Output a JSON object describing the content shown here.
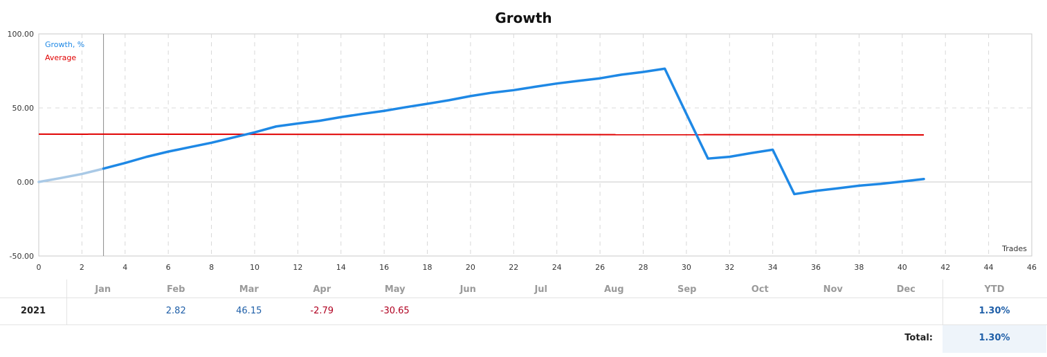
{
  "chart_data": {
    "type": "line",
    "title": "Growth",
    "xlabel": "Trades",
    "ylabel": "",
    "xlim": [
      0,
      46
    ],
    "ylim": [
      -50,
      100
    ],
    "x_ticks": [
      0,
      2,
      4,
      6,
      8,
      10,
      12,
      14,
      16,
      18,
      20,
      22,
      24,
      26,
      28,
      30,
      32,
      34,
      36,
      38,
      40,
      42,
      44,
      46
    ],
    "y_ticks": [
      -50,
      0,
      50,
      100
    ],
    "y_tick_labels": [
      "-50.00",
      "0.00",
      "50.00",
      "100.00"
    ],
    "grid": true,
    "legend_position": "top-left",
    "series": [
      {
        "name": "Growth, %",
        "color": "#1e88e5",
        "x": [
          0,
          1,
          2,
          3,
          4,
          5,
          6,
          7,
          8,
          9,
          10,
          11,
          12,
          13,
          14,
          15,
          16,
          17,
          18,
          19,
          20,
          21,
          22,
          23,
          24,
          25,
          26,
          27,
          28,
          29,
          30,
          31,
          32,
          33,
          34,
          35,
          36,
          37,
          38,
          39,
          40,
          41
        ],
        "values": [
          0,
          2.6,
          5.4,
          9.0,
          12.8,
          17.0,
          20.5,
          23.5,
          26.5,
          30.0,
          33.5,
          37.5,
          39.5,
          41.3,
          43.8,
          46.0,
          48.0,
          50.5,
          52.8,
          55.2,
          58.0,
          60.3,
          62.0,
          64.3,
          66.5,
          68.3,
          70.0,
          72.5,
          74.3,
          76.5,
          46.0,
          15.8,
          17.0,
          19.5,
          21.8,
          -8.2,
          -6.0,
          -4.3,
          -2.5,
          -1.3,
          0.3,
          2.0
        ]
      },
      {
        "name": "Average",
        "color": "#e00000",
        "x": [
          0,
          41
        ],
        "values": [
          32.3,
          31.8
        ]
      }
    ],
    "highlight": {
      "faded_until_x": 3,
      "marker_line_x": 3
    }
  },
  "table": {
    "months": [
      "Jan",
      "Feb",
      "Mar",
      "Apr",
      "May",
      "Jun",
      "Jul",
      "Aug",
      "Sep",
      "Oct",
      "Nov",
      "Dec"
    ],
    "year": "2021",
    "values": [
      "",
      "2.82",
      "46.15",
      "-2.79",
      "-30.65",
      "",
      "",
      "",
      "",
      "",
      "",
      ""
    ],
    "ytd_header": "YTD",
    "ytd_value": "1.30%",
    "total_label": "Total:",
    "total_value": "1.30%"
  }
}
